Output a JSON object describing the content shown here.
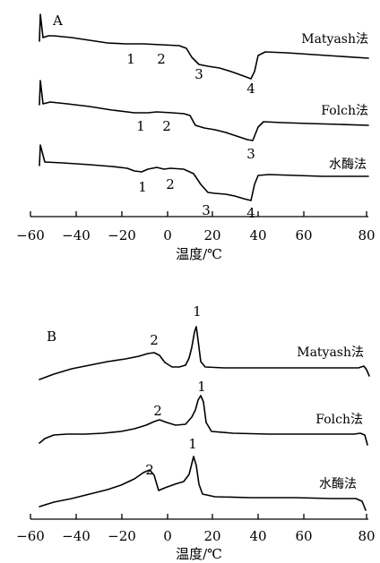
{
  "chart_data": [
    {
      "panel": "A",
      "type": "line",
      "xlabel": "温度/℃",
      "xlim": [
        -55,
        80
      ],
      "xticks": [
        -60,
        -40,
        -20,
        0,
        20,
        40,
        60,
        80
      ],
      "series": [
        {
          "name": "Matyash法",
          "peak_labels": [
            {
              "text": "1",
              "x": -17
            },
            {
              "text": "2",
              "x": -4
            },
            {
              "text": "3",
              "x": 12
            },
            {
              "text": "4",
              "x": 30
            }
          ]
        },
        {
          "name": "Folch法",
          "peak_labels": [
            {
              "text": "1",
              "x": -13
            },
            {
              "text": "2",
              "x": -2
            },
            {
              "text": "3",
              "x": 30
            }
          ]
        },
        {
          "name": "水酶法",
          "peak_labels": [
            {
              "text": "1",
              "x": -11
            },
            {
              "text": "2",
              "x": -3
            },
            {
              "text": "3",
              "x": 15
            },
            {
              "text": "4",
              "x": 30
            }
          ]
        }
      ]
    },
    {
      "panel": "B",
      "type": "line",
      "xlabel": "温度/℃",
      "xlim": [
        -55,
        80
      ],
      "xticks": [
        -60,
        -40,
        -20,
        0,
        20,
        40,
        60,
        80
      ],
      "series": [
        {
          "name": "Matyash法",
          "peak_labels": [
            {
              "text": "1",
              "x": 9
            },
            {
              "text": "2",
              "x": -9
            }
          ]
        },
        {
          "name": "Folch法",
          "peak_labels": [
            {
              "text": "1",
              "x": 11
            },
            {
              "text": "2",
              "x": -9
            }
          ]
        },
        {
          "name": "水酶法",
          "peak_labels": [
            {
              "text": "1",
              "x": 8
            },
            {
              "text": "2",
              "x": -11
            }
          ]
        }
      ]
    }
  ]
}
